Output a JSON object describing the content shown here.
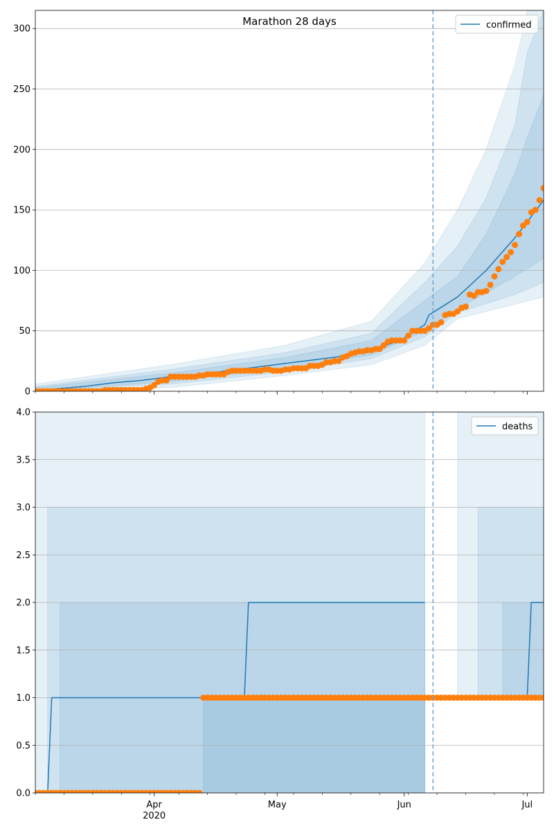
{
  "colors": {
    "line": "#1f77b4",
    "band": "#1f77b4",
    "observed": "#ff7f0e",
    "grid": "#b0b0b0",
    "vline": "#6aa3d4"
  },
  "chart_data": [
    {
      "type": "line",
      "title": "Marathon 28 days",
      "series_name": "confirmed",
      "legend_position": "top-right",
      "grid": true,
      "ylim": [
        0,
        315
      ],
      "yticks": [
        0,
        50,
        100,
        150,
        200,
        250,
        300
      ],
      "ytick_labels": [
        "0",
        "50",
        "100",
        "150",
        "200",
        "250",
        "300"
      ],
      "x_start": "2020-03-03",
      "x_end": "2020-07-05",
      "forecast_start": "2020-06-06",
      "median_line": [
        [
          "2020-03-03",
          0
        ],
        [
          "2020-03-08",
          2
        ],
        [
          "2020-03-15",
          4
        ],
        [
          "2020-03-22",
          7
        ],
        [
          "2020-03-29",
          9
        ],
        [
          "2020-04-05",
          12
        ],
        [
          "2020-04-12",
          14
        ],
        [
          "2020-04-19",
          17
        ],
        [
          "2020-04-26",
          20
        ],
        [
          "2020-05-03",
          23
        ],
        [
          "2020-05-10",
          26
        ],
        [
          "2020-05-17",
          29
        ],
        [
          "2020-05-24",
          34
        ],
        [
          "2020-05-31",
          42
        ],
        [
          "2020-06-06",
          55
        ],
        [
          "2020-06-07",
          63
        ],
        [
          "2020-06-14",
          78
        ],
        [
          "2020-06-21",
          100
        ],
        [
          "2020-06-28",
          127
        ],
        [
          "2020-07-01",
          140
        ],
        [
          "2020-07-05",
          158
        ]
      ],
      "bands": [
        {
          "lower": [
            [
              "2020-03-03",
              0
            ],
            [
              "2020-04-05",
              3
            ],
            [
              "2020-05-03",
              13
            ],
            [
              "2020-05-24",
              22
            ],
            [
              "2020-06-06",
              38
            ],
            [
              "2020-06-14",
              60
            ],
            [
              "2020-06-28",
              72
            ],
            [
              "2020-07-05",
              78
            ]
          ],
          "upper": [
            [
              "2020-03-03",
              6
            ],
            [
              "2020-04-05",
              22
            ],
            [
              "2020-05-03",
              38
            ],
            [
              "2020-05-24",
              58
            ],
            [
              "2020-06-06",
              106
            ],
            [
              "2020-06-14",
              150
            ],
            [
              "2020-06-21",
              200
            ],
            [
              "2020-06-28",
              270
            ],
            [
              "2020-07-01",
              315
            ],
            [
              "2020-07-05",
              315
            ]
          ]
        },
        {
          "lower": [
            [
              "2020-03-03",
              0
            ],
            [
              "2020-04-05",
              6
            ],
            [
              "2020-05-03",
              16
            ],
            [
              "2020-05-24",
              27
            ],
            [
              "2020-06-06",
              45
            ],
            [
              "2020-06-14",
              65
            ],
            [
              "2020-06-28",
              80
            ],
            [
              "2020-07-05",
              90
            ]
          ],
          "upper": [
            [
              "2020-03-03",
              4
            ],
            [
              "2020-04-05",
              18
            ],
            [
              "2020-05-03",
              32
            ],
            [
              "2020-05-24",
              48
            ],
            [
              "2020-06-06",
              90
            ],
            [
              "2020-06-14",
              120
            ],
            [
              "2020-06-21",
              160
            ],
            [
              "2020-06-28",
              220
            ],
            [
              "2020-07-01",
              280
            ],
            [
              "2020-07-05",
              315
            ]
          ]
        },
        {
          "lower": [
            [
              "2020-03-03",
              0
            ],
            [
              "2020-04-05",
              8
            ],
            [
              "2020-05-03",
              19
            ],
            [
              "2020-05-24",
              30
            ],
            [
              "2020-06-06",
              50
            ],
            [
              "2020-06-14",
              68
            ],
            [
              "2020-06-28",
              95
            ],
            [
              "2020-07-05",
              110
            ]
          ],
          "upper": [
            [
              "2020-03-03",
              3
            ],
            [
              "2020-04-05",
              15
            ],
            [
              "2020-05-03",
              28
            ],
            [
              "2020-05-24",
              42
            ],
            [
              "2020-06-06",
              75
            ],
            [
              "2020-06-14",
              95
            ],
            [
              "2020-06-21",
              130
            ],
            [
              "2020-06-28",
              180
            ],
            [
              "2020-07-01",
              210
            ],
            [
              "2020-07-05",
              245
            ]
          ]
        }
      ],
      "observed": [
        [
          "2020-03-03",
          0
        ],
        [
          "2020-03-04",
          0
        ],
        [
          "2020-03-05",
          0
        ],
        [
          "2020-03-06",
          0
        ],
        [
          "2020-03-07",
          0
        ],
        [
          "2020-03-08",
          0
        ],
        [
          "2020-03-09",
          0
        ],
        [
          "2020-03-10",
          0
        ],
        [
          "2020-03-11",
          0
        ],
        [
          "2020-03-12",
          0
        ],
        [
          "2020-03-13",
          0
        ],
        [
          "2020-03-14",
          0
        ],
        [
          "2020-03-15",
          0
        ],
        [
          "2020-03-16",
          0
        ],
        [
          "2020-03-17",
          0
        ],
        [
          "2020-03-18",
          0
        ],
        [
          "2020-03-19",
          0
        ],
        [
          "2020-03-20",
          1
        ],
        [
          "2020-03-21",
          1
        ],
        [
          "2020-03-22",
          1
        ],
        [
          "2020-03-23",
          1
        ],
        [
          "2020-03-24",
          1
        ],
        [
          "2020-03-25",
          1
        ],
        [
          "2020-03-26",
          1
        ],
        [
          "2020-03-27",
          1
        ],
        [
          "2020-03-28",
          1
        ],
        [
          "2020-03-29",
          1
        ],
        [
          "2020-03-30",
          2
        ],
        [
          "2020-03-31",
          3
        ],
        [
          "2020-04-01",
          5
        ],
        [
          "2020-04-02",
          8
        ],
        [
          "2020-04-03",
          9
        ],
        [
          "2020-04-04",
          9
        ],
        [
          "2020-04-05",
          12
        ],
        [
          "2020-04-06",
          12
        ],
        [
          "2020-04-07",
          12
        ],
        [
          "2020-04-08",
          12
        ],
        [
          "2020-04-09",
          12
        ],
        [
          "2020-04-10",
          12
        ],
        [
          "2020-04-11",
          12
        ],
        [
          "2020-04-12",
          13
        ],
        [
          "2020-04-13",
          13
        ],
        [
          "2020-04-14",
          14
        ],
        [
          "2020-04-15",
          14
        ],
        [
          "2020-04-16",
          14
        ],
        [
          "2020-04-17",
          14
        ],
        [
          "2020-04-18",
          14
        ],
        [
          "2020-04-19",
          16
        ],
        [
          "2020-04-20",
          17
        ],
        [
          "2020-04-21",
          17
        ],
        [
          "2020-04-22",
          17
        ],
        [
          "2020-04-23",
          17
        ],
        [
          "2020-04-24",
          17
        ],
        [
          "2020-04-25",
          17
        ],
        [
          "2020-04-26",
          17
        ],
        [
          "2020-04-27",
          17
        ],
        [
          "2020-04-28",
          18
        ],
        [
          "2020-04-29",
          18
        ],
        [
          "2020-04-30",
          17
        ],
        [
          "2020-05-01",
          17
        ],
        [
          "2020-05-02",
          17
        ],
        [
          "2020-05-03",
          18
        ],
        [
          "2020-05-04",
          18
        ],
        [
          "2020-05-05",
          19
        ],
        [
          "2020-05-06",
          19
        ],
        [
          "2020-05-07",
          19
        ],
        [
          "2020-05-08",
          19
        ],
        [
          "2020-05-09",
          21
        ],
        [
          "2020-05-10",
          21
        ],
        [
          "2020-05-11",
          21
        ],
        [
          "2020-05-12",
          22
        ],
        [
          "2020-05-13",
          24
        ],
        [
          "2020-05-14",
          24
        ],
        [
          "2020-05-15",
          25
        ],
        [
          "2020-05-16",
          25
        ],
        [
          "2020-05-17",
          28
        ],
        [
          "2020-05-18",
          29
        ],
        [
          "2020-05-19",
          31
        ],
        [
          "2020-05-20",
          32
        ],
        [
          "2020-05-21",
          33
        ],
        [
          "2020-05-22",
          33
        ],
        [
          "2020-05-23",
          34
        ],
        [
          "2020-05-24",
          34
        ],
        [
          "2020-05-25",
          35
        ],
        [
          "2020-05-26",
          35
        ],
        [
          "2020-05-27",
          38
        ],
        [
          "2020-05-28",
          41
        ],
        [
          "2020-05-29",
          42
        ],
        [
          "2020-05-30",
          42
        ],
        [
          "2020-05-31",
          42
        ],
        [
          "2020-06-01",
          42
        ],
        [
          "2020-06-02",
          46
        ],
        [
          "2020-06-03",
          50
        ],
        [
          "2020-06-04",
          50
        ],
        [
          "2020-06-05",
          50
        ],
        [
          "2020-06-06",
          50
        ],
        [
          "2020-06-07",
          52
        ],
        [
          "2020-06-08",
          55
        ],
        [
          "2020-06-09",
          55
        ],
        [
          "2020-06-10",
          57
        ],
        [
          "2020-06-11",
          63
        ],
        [
          "2020-06-12",
          64
        ],
        [
          "2020-06-13",
          64
        ],
        [
          "2020-06-14",
          66
        ],
        [
          "2020-06-15",
          69
        ],
        [
          "2020-06-16",
          70
        ],
        [
          "2020-06-17",
          80
        ],
        [
          "2020-06-18",
          79
        ],
        [
          "2020-06-19",
          82
        ],
        [
          "2020-06-20",
          82
        ],
        [
          "2020-06-21",
          83
        ],
        [
          "2020-06-22",
          88
        ],
        [
          "2020-06-23",
          95
        ],
        [
          "2020-06-24",
          101
        ],
        [
          "2020-06-25",
          107
        ],
        [
          "2020-06-26",
          111
        ],
        [
          "2020-06-27",
          115
        ],
        [
          "2020-06-28",
          121
        ],
        [
          "2020-06-29",
          130
        ],
        [
          "2020-06-30",
          137
        ],
        [
          "2020-07-01",
          140
        ],
        [
          "2020-07-02",
          148
        ],
        [
          "2020-07-03",
          150
        ],
        [
          "2020-07-04",
          158
        ],
        [
          "2020-07-05",
          168
        ]
      ]
    },
    {
      "type": "line",
      "series_name": "deaths",
      "legend_position": "top-right",
      "grid": true,
      "ylim": [
        0,
        4
      ],
      "yticks": [
        0,
        0.5,
        1,
        1.5,
        2,
        2.5,
        3,
        3.5,
        4
      ],
      "ytick_labels": [
        "0.0",
        "0.5",
        "1.0",
        "1.5",
        "2.0",
        "2.5",
        "3.0",
        "3.5",
        "4.0"
      ],
      "x_start": "2020-03-03",
      "x_end": "2020-07-05",
      "forecast_start": "2020-06-06",
      "xtick_major": [
        {
          "date": "2020-04-01",
          "label": "Apr",
          "sublabel": "2020"
        },
        {
          "date": "2020-05-01",
          "label": "May",
          "sublabel": ""
        },
        {
          "date": "2020-06-01",
          "label": "Jun",
          "sublabel": ""
        },
        {
          "date": "2020-07-01",
          "label": "Jul",
          "sublabel": ""
        }
      ],
      "median_line": [
        [
          "2020-03-03",
          0
        ],
        [
          "2020-03-06",
          0
        ],
        [
          "2020-03-07",
          1
        ],
        [
          "2020-04-23",
          1
        ],
        [
          "2020-04-24",
          2
        ],
        [
          "2020-06-06",
          2
        ]
      ],
      "median_line_2": [
        [
          "2020-07-01",
          1
        ],
        [
          "2020-07-02",
          2
        ],
        [
          "2020-07-05",
          2
        ]
      ],
      "bands_note": "shaded intervals",
      "bands": [
        {
          "x0": "2020-03-03",
          "x1": "2020-06-06",
          "y0": 0,
          "y1": 4
        },
        {
          "x0": "2020-03-06",
          "x1": "2020-06-06",
          "y0": 0,
          "y1": 3
        },
        {
          "x0": "2020-03-09",
          "x1": "2020-06-06",
          "y0": 0,
          "y1": 2
        },
        {
          "x0": "2020-04-13",
          "x1": "2020-06-06",
          "y0": 0,
          "y1": 1
        },
        {
          "x0": "2020-06-14",
          "x1": "2020-07-05",
          "y0": 1,
          "y1": 4
        },
        {
          "x0": "2020-06-19",
          "x1": "2020-07-05",
          "y0": 1,
          "y1": 3
        },
        {
          "x0": "2020-06-25",
          "x1": "2020-07-05",
          "y0": 1,
          "y1": 2
        }
      ],
      "observed_zero": {
        "start": "2020-03-03",
        "end": "2020-04-12",
        "value": 0
      },
      "observed_one": {
        "start": "2020-04-13",
        "end": "2020-07-05",
        "value": 1
      }
    }
  ]
}
